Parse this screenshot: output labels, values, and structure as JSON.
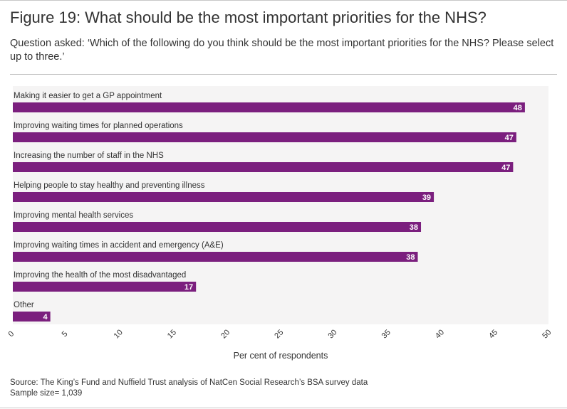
{
  "header": {
    "title": "Figure 19: What should be the most important priorities for the NHS?",
    "subtitle": "Question asked: ‘Which of the following do you think should be the most important priorities for the NHS? Please select up to three.’"
  },
  "chart_data": {
    "type": "bar",
    "orientation": "horizontal",
    "categories": [
      "Making it easier to get a GP appointment",
      "Improving waiting times for planned operations",
      "Increasing the number of staff in the NHS",
      "Helping people to stay healthy and preventing illness",
      "Improving mental health services",
      "Improving waiting times in accident and emergency (A&E)",
      "Improving the health of the most disadvantaged",
      "Other"
    ],
    "values": [
      47.8,
      47.0,
      46.7,
      39.3,
      38.1,
      37.8,
      17.1,
      3.5
    ],
    "labels": [
      "48",
      "47",
      "47",
      "39",
      "38",
      "38",
      "17",
      "4"
    ],
    "xlabel": "Per cent of respondents",
    "xlim": [
      0,
      50
    ],
    "xticks": [
      0,
      5,
      10,
      15,
      20,
      25,
      30,
      35,
      40,
      45,
      50
    ],
    "grid": false,
    "legend": "none"
  },
  "colors": {
    "bar": "#7b1f7e",
    "plot_background": "#f5f4f4",
    "label_text": "#ffffff",
    "text": "#333333"
  },
  "footer": {
    "source": "Source: The King’s Fund and Nuffield Trust analysis of NatCen Social Research’s BSA survey data",
    "sample": "Sample size= 1,039"
  }
}
